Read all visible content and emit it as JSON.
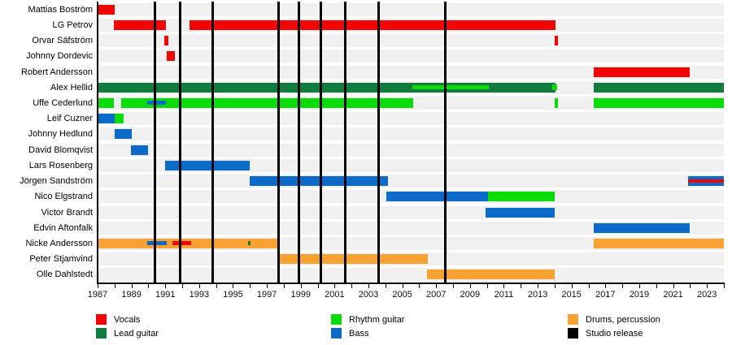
{
  "chart_data": {
    "type": "timeline",
    "description": "Band members timeline (Gantt-style) with roles by color and studio release lines",
    "axis": {
      "year_start": 1987,
      "year_end": 2024,
      "tick_labels": [
        1987,
        1989,
        1991,
        1993,
        1995,
        1997,
        1999,
        2001,
        2003,
        2005,
        2007,
        2009,
        2011,
        2013,
        2015,
        2017,
        2019,
        2021,
        2023
      ]
    },
    "colors": {
      "vocals": "#F20505",
      "lead_guitar": "#127C3E",
      "rhythm_guitar": "#09DC09",
      "bass": "#0C6BC8",
      "drums": "#F7A233",
      "studio_release": "#000000",
      "row_band": "#F0F0F0"
    },
    "members": [
      {
        "name": "Mattias Boström",
        "bars": [
          {
            "role": "vocals",
            "from": 1987.0,
            "to": 1988.0
          }
        ]
      },
      {
        "name": "LG Petrov",
        "bars": [
          {
            "role": "vocals",
            "from": 1987.95,
            "to": 1991.05
          },
          {
            "role": "vocals",
            "from": 1992.45,
            "to": 2014.05
          }
        ]
      },
      {
        "name": "Orvar Säfström",
        "bars": [
          {
            "role": "vocals",
            "from": 1990.95,
            "to": 1991.2
          },
          {
            "role": "vocals",
            "from": 2014.0,
            "to": 2014.2
          }
        ]
      },
      {
        "name": "Johnny Dordevic",
        "bars": [
          {
            "role": "vocals",
            "from": 1991.1,
            "to": 1991.55
          }
        ]
      },
      {
        "name": "Robert Andersson",
        "bars": [
          {
            "role": "vocals",
            "from": 2016.3,
            "to": 2022.0
          }
        ]
      },
      {
        "name": "Alex Hellid",
        "bars": [
          {
            "role": "lead_guitar",
            "from": 1987.0,
            "to": 2014.05
          },
          {
            "role": "rhythm_guitar",
            "from": 2005.6,
            "to": 2010.1,
            "overlay": true
          },
          {
            "role": "rhythm_guitar",
            "from": 2013.85,
            "to": 2014.15,
            "overlay": true,
            "h": 7
          },
          {
            "role": "lead_guitar",
            "from": 2016.3,
            "to": 2024.0
          }
        ]
      },
      {
        "name": "Uffe Cederlund",
        "bars": [
          {
            "role": "rhythm_guitar",
            "from": 1987.0,
            "to": 1987.95
          },
          {
            "role": "rhythm_guitar",
            "from": 1988.4,
            "to": 2005.65
          },
          {
            "role": "bass",
            "from": 1989.95,
            "to": 1991.05,
            "overlay": true
          },
          {
            "role": "rhythm_guitar",
            "from": 2014.0,
            "to": 2014.2
          },
          {
            "role": "rhythm_guitar",
            "from": 2016.3,
            "to": 2024.0
          }
        ]
      },
      {
        "name": "Leif Cuzner",
        "bars": [
          {
            "role": "bass",
            "from": 1987.0,
            "to": 1988.0
          },
          {
            "role": "rhythm_guitar",
            "from": 1988.0,
            "to": 1988.55
          }
        ]
      },
      {
        "name": "Johnny Hedlund",
        "bars": [
          {
            "role": "bass",
            "from": 1988.0,
            "to": 1989.0
          }
        ]
      },
      {
        "name": "David Blomqvist",
        "bars": [
          {
            "role": "bass",
            "from": 1988.95,
            "to": 1990.0
          }
        ]
      },
      {
        "name": "Lars Rosenberg",
        "bars": [
          {
            "role": "bass",
            "from": 1991.0,
            "to": 1996.0
          }
        ]
      },
      {
        "name": "Jörgen Sandström",
        "bars": [
          {
            "role": "bass",
            "from": 1996.0,
            "to": 2004.15
          },
          {
            "role": "bass",
            "from": 2021.9,
            "to": 2024.0
          },
          {
            "role": "vocals",
            "from": 2021.9,
            "to": 2024.0,
            "overlay": true,
            "h": 4
          }
        ]
      },
      {
        "name": "Nico Elgstrand",
        "bars": [
          {
            "role": "bass",
            "from": 2004.05,
            "to": 2010.05
          },
          {
            "role": "rhythm_guitar",
            "from": 2010.05,
            "to": 2014.0
          }
        ]
      },
      {
        "name": "Victor Brandt",
        "bars": [
          {
            "role": "bass",
            "from": 2009.9,
            "to": 2014.0
          }
        ]
      },
      {
        "name": "Edvin Aftonfalk",
        "bars": [
          {
            "role": "bass",
            "from": 2016.3,
            "to": 2022.0
          }
        ]
      },
      {
        "name": "Nicke Andersson",
        "bars": [
          {
            "role": "drums",
            "from": 1987.05,
            "to": 1997.7
          },
          {
            "role": "bass",
            "from": 1989.95,
            "to": 1991.1,
            "overlay": true
          },
          {
            "role": "vocals",
            "from": 1991.4,
            "to": 1992.55,
            "overlay": true
          },
          {
            "role": "lead_guitar",
            "from": 1995.9,
            "to": 1996.05,
            "overlay": true
          },
          {
            "role": "drums",
            "from": 2016.3,
            "to": 2024.0
          }
        ]
      },
      {
        "name": "Peter Stjamvind",
        "bars": [
          {
            "role": "drums",
            "from": 1997.7,
            "to": 2006.5
          }
        ]
      },
      {
        "name": "Olle Dahlstedt",
        "bars": [
          {
            "role": "drums",
            "from": 2006.45,
            "to": 2014.0
          }
        ]
      }
    ],
    "releases": [
      1990.4,
      1991.88,
      1993.8,
      1997.67,
      1998.9,
      2000.2,
      2001.62,
      2003.62,
      2007.52
    ],
    "legend": {
      "columns": [
        {
          "items": [
            {
              "label": "Vocals",
              "role": "vocals"
            },
            {
              "label": "Lead guitar",
              "role": "lead_guitar"
            }
          ]
        },
        {
          "items": [
            {
              "label": "Rhythm guitar",
              "role": "rhythm_guitar"
            },
            {
              "label": "Bass",
              "role": "bass"
            }
          ]
        },
        {
          "items": [
            {
              "label": "Drums, percussion",
              "role": "drums"
            },
            {
              "label": "Studio release",
              "role": "studio_release"
            }
          ]
        }
      ]
    }
  }
}
